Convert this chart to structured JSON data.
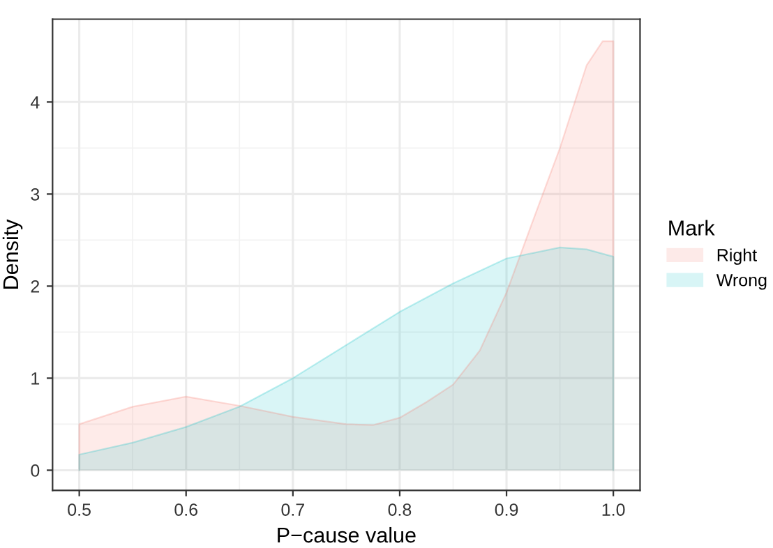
{
  "chart_data": {
    "type": "area",
    "xlabel": "P−cause value",
    "ylabel": "Density",
    "legend_title": "Mark",
    "legend": "right",
    "grid": true,
    "xlim": [
      0.475,
      1.025
    ],
    "xticks": [
      0.5,
      0.6,
      0.7,
      0.8,
      0.9,
      {
        "value": 1,
        "label": "1.0"
      }
    ],
    "ylim": [
      -0.22,
      4.9
    ],
    "yticks": [
      0,
      1,
      2,
      3,
      4
    ],
    "series": [
      {
        "name": "Right",
        "color": "#f8766d",
        "x": [
          0.5,
          0.55,
          0.6,
          0.65,
          0.7,
          0.75,
          0.775,
          0.8,
          0.825,
          0.85,
          0.875,
          0.9,
          0.925,
          0.95,
          0.975,
          0.99,
          1.0
        ],
        "values": [
          0.5,
          0.69,
          0.8,
          0.7,
          0.58,
          0.5,
          0.49,
          0.57,
          0.74,
          0.93,
          1.3,
          1.93,
          2.72,
          3.5,
          4.4,
          4.66,
          4.66
        ]
      },
      {
        "name": "Wrong",
        "color": "#00bfc4",
        "x": [
          0.5,
          0.55,
          0.6,
          0.65,
          0.7,
          0.75,
          0.8,
          0.85,
          0.9,
          0.95,
          0.975,
          1.0
        ],
        "values": [
          0.17,
          0.3,
          0.47,
          0.69,
          1.0,
          1.36,
          1.72,
          2.03,
          2.3,
          2.42,
          2.4,
          2.32
        ]
      }
    ]
  }
}
